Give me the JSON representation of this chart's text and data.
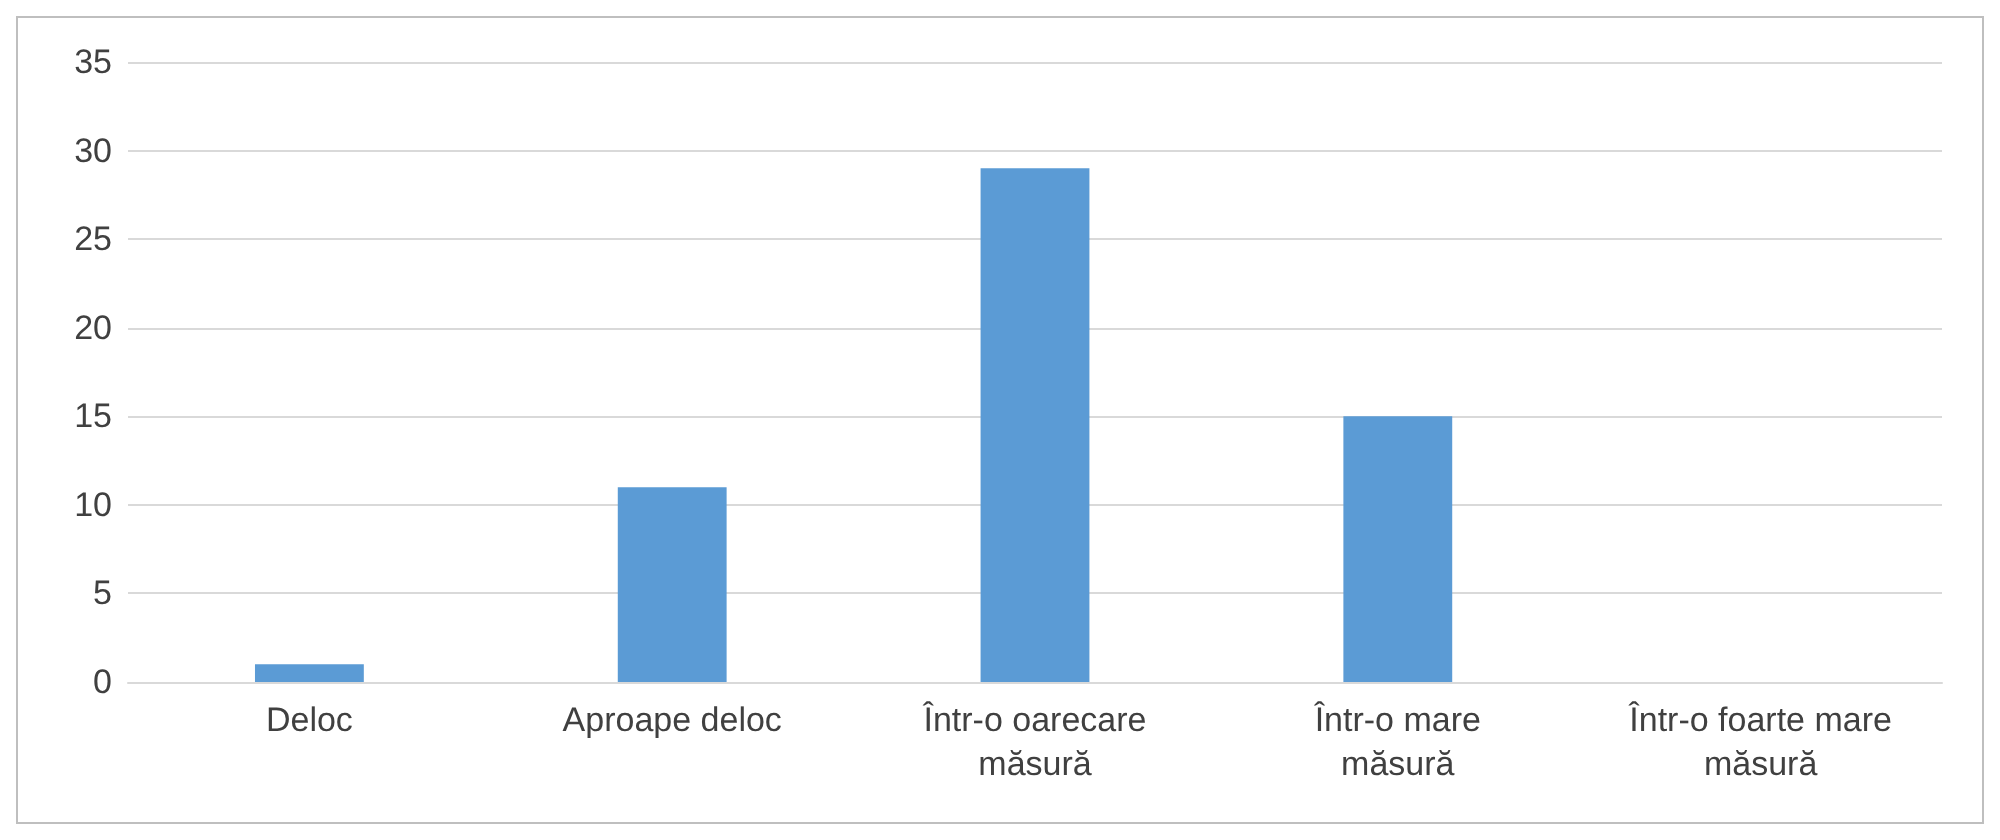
{
  "chart_data": {
    "type": "bar",
    "categories": [
      "Deloc",
      "Aproape deloc",
      "Într-o oarecare\nmăsură",
      "Într-o mare\nmăsură",
      "Într-o foarte mare\nmăsură"
    ],
    "values": [
      1,
      11,
      29,
      15,
      0
    ],
    "color": "#5b9bd5",
    "ylim": [
      0,
      35
    ],
    "yticks": [
      0,
      5,
      10,
      15,
      20,
      25,
      30,
      35
    ],
    "grid": "y"
  }
}
